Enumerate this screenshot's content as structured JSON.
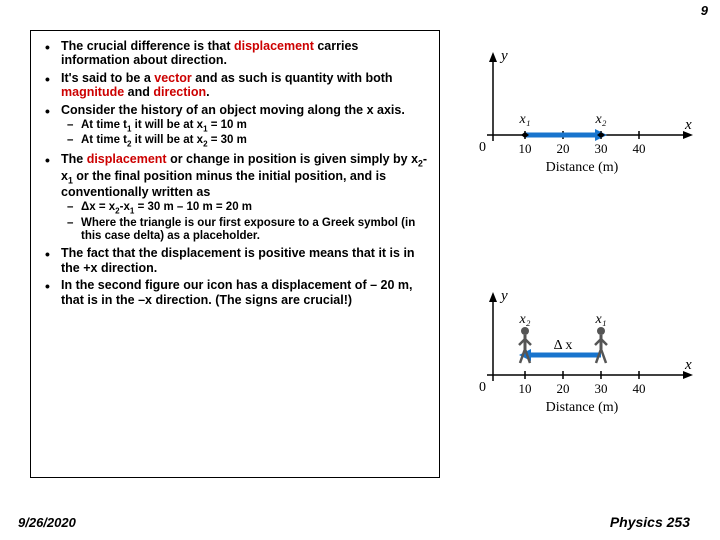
{
  "page_number": "9",
  "footer_date": "9/26/2020",
  "footer_course": "Physics 253",
  "colors": {
    "red": "#cc0000",
    "text": "#000000",
    "arrow_blue": "#1874cd",
    "axis_gray": "#888888"
  },
  "bullets": {
    "b1_a": "The crucial difference is that ",
    "b1_red": "displacement",
    "b1_b": " carries information about direction.",
    "b2_a": "It's said to be a ",
    "b2_red1": "vector",
    "b2_b": " and as such is quantity with both ",
    "b2_red2": "magnitude",
    "b2_c": " and ",
    "b2_red3": "direction",
    "b2_d": ".",
    "b3": "Consider the history of an object moving along the x axis.",
    "s3a_a": "At time t",
    "s3a_b": " it will be at x",
    "s3a_c": " = 10 m",
    "s3b_a": "At time t",
    "s3b_b": " it will be at x",
    "s3b_c": " = 30 m",
    "b4_a": "The ",
    "b4_red": "displacement",
    "b4_b": " or change in position is given simply by x",
    "b4_c": "-x",
    "b4_d": " or the final position minus the initial position, and is conventionally written as",
    "s4a_a": "Δx = x",
    "s4a_b": "-x",
    "s4a_c": " = 30 m – 10 m = 20 m",
    "s4b": "Where the triangle is our first exposure to a Greek symbol (in this case delta) as a placeholder.",
    "b5": "The fact that the displacement is positive means that it is in the +x direction.",
    "b6": "In the second figure our icon has a displacement of – 20 m, that is in the –x direction. (The signs are crucial!)"
  },
  "diagram_common": {
    "y_label": "y",
    "x_label": "x",
    "origin_label": "0",
    "axis_title": "Distance (m)",
    "ticks": [
      "10",
      "20",
      "30",
      "40"
    ],
    "x1_label": "x₁",
    "x2_label": "x₂",
    "dx_label": "Δ x"
  },
  "diagram1": {
    "arrow_from_tick": 0,
    "arrow_to_tick": 2,
    "x1_at_tick": 0,
    "x2_at_tick": 2
  },
  "diagram2": {
    "arrow_from_tick": 2,
    "arrow_to_tick": 0,
    "x1_at_tick": 2,
    "x2_at_tick": 0
  }
}
